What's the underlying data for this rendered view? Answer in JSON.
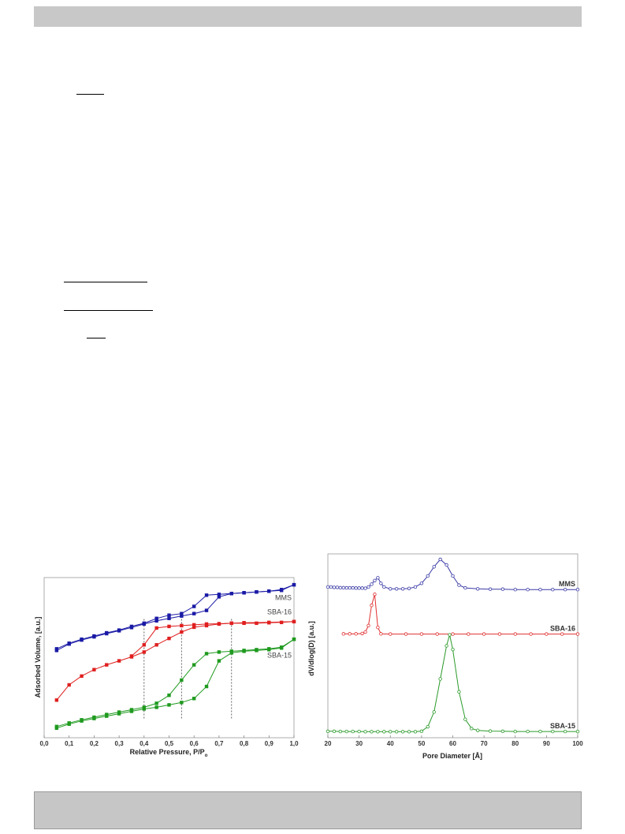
{
  "chart_data": [
    {
      "type": "line",
      "xlabel": "Relative Pressure, P/P",
      "xlabel_sub": "o",
      "ylabel": "Adsorbed Volume, [a.u.]",
      "xlim": [
        0.0,
        1.0
      ],
      "x_ticks": [
        "0,0",
        "0,1",
        "0,2",
        "0,3",
        "0,4",
        "0,5",
        "0,6",
        "0,7",
        "0,8",
        "0,9",
        "1,0"
      ],
      "grid": false,
      "vlines": [
        0.4,
        0.55,
        0.75
      ],
      "series": [
        {
          "name": "MMS",
          "color": "#1a1aa6",
          "adsorption": [
            [
              0.05,
              0.545
            ],
            [
              0.1,
              0.585
            ],
            [
              0.15,
              0.61
            ],
            [
              0.2,
              0.63
            ],
            [
              0.25,
              0.65
            ],
            [
              0.3,
              0.668
            ],
            [
              0.35,
              0.688
            ],
            [
              0.4,
              0.71
            ],
            [
              0.45,
              0.73
            ],
            [
              0.5,
              0.745
            ],
            [
              0.55,
              0.76
            ],
            [
              0.6,
              0.775
            ],
            [
              0.65,
              0.795
            ],
            [
              0.7,
              0.88
            ],
            [
              0.75,
              0.9
            ],
            [
              0.8,
              0.905
            ],
            [
              0.85,
              0.91
            ],
            [
              0.9,
              0.915
            ],
            [
              0.95,
              0.92
            ],
            [
              1.0,
              0.955
            ]
          ],
          "desorption": [
            [
              1.0,
              0.955
            ],
            [
              0.95,
              0.925
            ],
            [
              0.9,
              0.915
            ],
            [
              0.85,
              0.91
            ],
            [
              0.8,
              0.905
            ],
            [
              0.75,
              0.9
            ],
            [
              0.7,
              0.895
            ],
            [
              0.65,
              0.89
            ],
            [
              0.6,
              0.82
            ],
            [
              0.55,
              0.775
            ],
            [
              0.5,
              0.765
            ],
            [
              0.45,
              0.745
            ],
            [
              0.4,
              0.715
            ],
            [
              0.35,
              0.695
            ],
            [
              0.3,
              0.672
            ],
            [
              0.25,
              0.655
            ],
            [
              0.2,
              0.635
            ],
            [
              0.15,
              0.615
            ],
            [
              0.1,
              0.59
            ],
            [
              0.05,
              0.555
            ]
          ]
        },
        {
          "name": "SBA-16",
          "color": "#e01f1f",
          "adsorption": [
            [
              0.05,
              0.235
            ],
            [
              0.1,
              0.33
            ],
            [
              0.15,
              0.385
            ],
            [
              0.2,
              0.425
            ],
            [
              0.25,
              0.455
            ],
            [
              0.3,
              0.48
            ],
            [
              0.35,
              0.505
            ],
            [
              0.4,
              0.535
            ],
            [
              0.45,
              0.58
            ],
            [
              0.5,
              0.62
            ],
            [
              0.55,
              0.66
            ],
            [
              0.6,
              0.69
            ],
            [
              0.65,
              0.7
            ],
            [
              0.7,
              0.71
            ],
            [
              0.75,
              0.715
            ],
            [
              0.8,
              0.715
            ],
            [
              0.85,
              0.715
            ],
            [
              0.9,
              0.718
            ],
            [
              0.95,
              0.72
            ],
            [
              1.0,
              0.725
            ]
          ],
          "desorption": [
            [
              1.0,
              0.725
            ],
            [
              0.9,
              0.72
            ],
            [
              0.8,
              0.718
            ],
            [
              0.75,
              0.715
            ],
            [
              0.7,
              0.712
            ],
            [
              0.65,
              0.71
            ],
            [
              0.6,
              0.705
            ],
            [
              0.55,
              0.7
            ],
            [
              0.5,
              0.695
            ],
            [
              0.45,
              0.685
            ],
            [
              0.4,
              0.58
            ],
            [
              0.35,
              0.51
            ]
          ]
        },
        {
          "name": "SBA-15",
          "color": "#1f9a1f",
          "adsorption": [
            [
              0.05,
              0.06
            ],
            [
              0.1,
              0.085
            ],
            [
              0.15,
              0.105
            ],
            [
              0.2,
              0.12
            ],
            [
              0.25,
              0.135
            ],
            [
              0.3,
              0.15
            ],
            [
              0.35,
              0.165
            ],
            [
              0.4,
              0.18
            ],
            [
              0.45,
              0.19
            ],
            [
              0.5,
              0.205
            ],
            [
              0.55,
              0.22
            ],
            [
              0.6,
              0.245
            ],
            [
              0.65,
              0.32
            ],
            [
              0.7,
              0.48
            ],
            [
              0.75,
              0.53
            ],
            [
              0.8,
              0.54
            ],
            [
              0.85,
              0.545
            ],
            [
              0.9,
              0.55
            ],
            [
              0.95,
              0.56
            ],
            [
              1.0,
              0.615
            ]
          ],
          "desorption": [
            [
              1.0,
              0.615
            ],
            [
              0.95,
              0.565
            ],
            [
              0.9,
              0.555
            ],
            [
              0.85,
              0.55
            ],
            [
              0.8,
              0.545
            ],
            [
              0.75,
              0.54
            ],
            [
              0.7,
              0.535
            ],
            [
              0.65,
              0.525
            ],
            [
              0.6,
              0.455
            ],
            [
              0.55,
              0.36
            ],
            [
              0.5,
              0.265
            ],
            [
              0.45,
              0.215
            ],
            [
              0.4,
              0.19
            ],
            [
              0.35,
              0.175
            ],
            [
              0.3,
              0.16
            ],
            [
              0.25,
              0.145
            ],
            [
              0.2,
              0.128
            ],
            [
              0.15,
              0.112
            ],
            [
              0.1,
              0.092
            ],
            [
              0.05,
              0.07
            ]
          ]
        }
      ]
    },
    {
      "type": "line",
      "xlabel": "Pore Diameter [Å]",
      "ylabel": "dV/dlog(D) [a.u.]",
      "xlim": [
        20,
        100
      ],
      "x_ticks": [
        "20",
        "30",
        "40",
        "50",
        "60",
        "70",
        "80",
        "90",
        "100"
      ],
      "grid": false,
      "series": [
        {
          "name": "MMS",
          "color": "#3a3aa6",
          "points": [
            [
              20,
              0.82
            ],
            [
              21,
              0.82
            ],
            [
              22,
              0.818
            ],
            [
              23,
              0.818
            ],
            [
              24,
              0.816
            ],
            [
              25,
              0.816
            ],
            [
              26,
              0.815
            ],
            [
              27,
              0.815
            ],
            [
              28,
              0.815
            ],
            [
              29,
              0.814
            ],
            [
              30,
              0.814
            ],
            [
              31,
              0.814
            ],
            [
              32,
              0.813
            ],
            [
              33,
              0.82
            ],
            [
              34,
              0.835
            ],
            [
              35,
              0.855
            ],
            [
              36,
              0.87
            ],
            [
              37,
              0.84
            ],
            [
              38,
              0.82
            ],
            [
              40,
              0.81
            ],
            [
              42,
              0.81
            ],
            [
              44,
              0.81
            ],
            [
              46,
              0.812
            ],
            [
              48,
              0.82
            ],
            [
              50,
              0.84
            ],
            [
              52,
              0.88
            ],
            [
              54,
              0.93
            ],
            [
              56,
              0.97
            ],
            [
              58,
              0.94
            ],
            [
              60,
              0.88
            ],
            [
              62,
              0.83
            ],
            [
              64,
              0.815
            ],
            [
              68,
              0.81
            ],
            [
              72,
              0.808
            ],
            [
              76,
              0.808
            ],
            [
              80,
              0.806
            ],
            [
              84,
              0.806
            ],
            [
              88,
              0.806
            ],
            [
              92,
              0.806
            ],
            [
              96,
              0.806
            ],
            [
              100,
              0.806
            ]
          ]
        },
        {
          "name": "SBA-16",
          "color": "#e03030",
          "points": [
            [
              25,
              0.565
            ],
            [
              27,
              0.565
            ],
            [
              29,
              0.565
            ],
            [
              31,
              0.567
            ],
            [
              32,
              0.575
            ],
            [
              33,
              0.61
            ],
            [
              34,
              0.72
            ],
            [
              35,
              0.78
            ],
            [
              36,
              0.6
            ],
            [
              37,
              0.565
            ],
            [
              40,
              0.564
            ],
            [
              45,
              0.564
            ],
            [
              50,
              0.564
            ],
            [
              55,
              0.564
            ],
            [
              60,
              0.564
            ],
            [
              65,
              0.564
            ],
            [
              70,
              0.564
            ],
            [
              75,
              0.564
            ],
            [
              80,
              0.564
            ],
            [
              85,
              0.564
            ],
            [
              90,
              0.564
            ],
            [
              95,
              0.564
            ],
            [
              100,
              0.564
            ]
          ]
        },
        {
          "name": "SBA-15",
          "color": "#2a9a2a",
          "points": [
            [
              20,
              0.035
            ],
            [
              22,
              0.035
            ],
            [
              24,
              0.034
            ],
            [
              26,
              0.034
            ],
            [
              28,
              0.034
            ],
            [
              30,
              0.034
            ],
            [
              32,
              0.033
            ],
            [
              34,
              0.033
            ],
            [
              36,
              0.033
            ],
            [
              38,
              0.033
            ],
            [
              40,
              0.033
            ],
            [
              42,
              0.033
            ],
            [
              44,
              0.033
            ],
            [
              46,
              0.033
            ],
            [
              48,
              0.033
            ],
            [
              50,
              0.035
            ],
            [
              52,
              0.06
            ],
            [
              54,
              0.14
            ],
            [
              56,
              0.32
            ],
            [
              58,
              0.5
            ],
            [
              59,
              0.56
            ],
            [
              60,
              0.48
            ],
            [
              62,
              0.25
            ],
            [
              64,
              0.1
            ],
            [
              66,
              0.05
            ],
            [
              68,
              0.04
            ],
            [
              72,
              0.036
            ],
            [
              76,
              0.035
            ],
            [
              80,
              0.034
            ],
            [
              84,
              0.034
            ],
            [
              88,
              0.034
            ],
            [
              92,
              0.034
            ],
            [
              96,
              0.034
            ],
            [
              100,
              0.034
            ]
          ]
        }
      ]
    }
  ]
}
